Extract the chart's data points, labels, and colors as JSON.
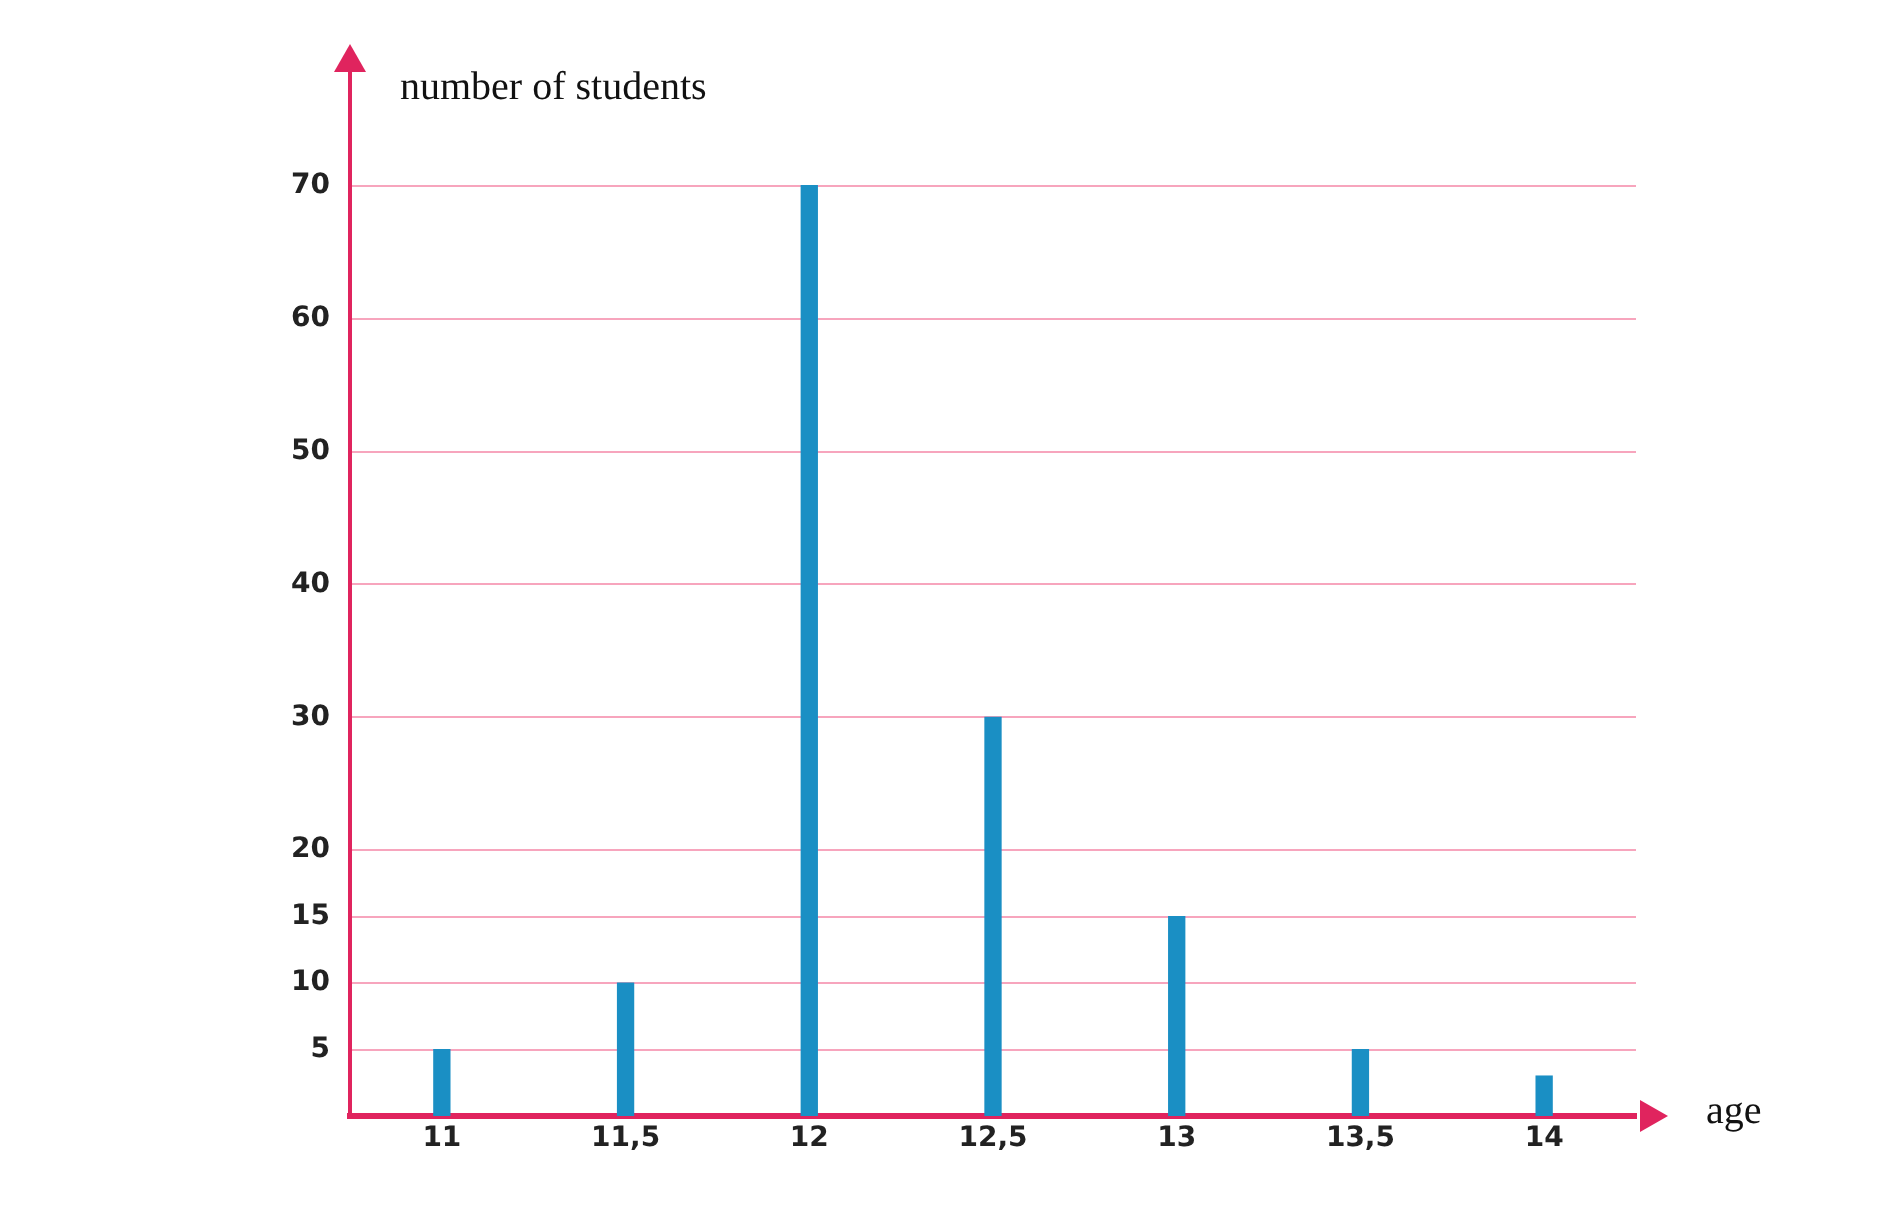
{
  "chart_data": {
    "type": "bar",
    "xlabel": "age",
    "ylabel": "number of students",
    "categories": [
      "11",
      "11,5",
      "12",
      "12,5",
      "13",
      "13,5",
      "14"
    ],
    "values": [
      5,
      10,
      70,
      30,
      15,
      5,
      3
    ],
    "color": "#1a8fc4",
    "ylim": [
      0,
      80
    ],
    "yticks": [
      5,
      10,
      15,
      20,
      30,
      40,
      50,
      60,
      70
    ],
    "grid": "y",
    "legend": false
  }
}
